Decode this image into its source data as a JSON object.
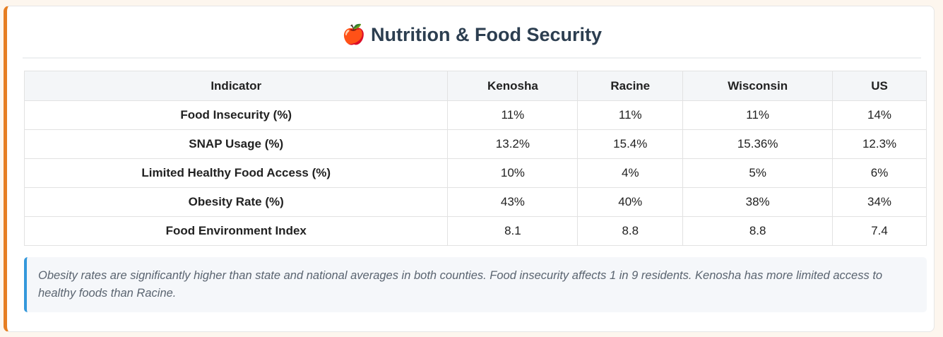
{
  "title": "🍎 Nutrition & Food Security",
  "table": {
    "columns": [
      "Indicator",
      "Kenosha",
      "Racine",
      "Wisconsin",
      "US"
    ],
    "rows": [
      [
        "Food Insecurity (%)",
        "11%",
        "11%",
        "11%",
        "14%"
      ],
      [
        "SNAP Usage (%)",
        "13.2%",
        "15.4%",
        "15.36%",
        "12.3%"
      ],
      [
        "Limited Healthy Food Access (%)",
        "10%",
        "4%",
        "5%",
        "6%"
      ],
      [
        "Obesity Rate (%)",
        "43%",
        "40%",
        "38%",
        "34%"
      ],
      [
        "Food Environment Index",
        "8.1",
        "8.8",
        "8.8",
        "7.4"
      ]
    ]
  },
  "note": "Obesity rates are significantly higher than state and national averages in both counties. Food insecurity affects 1 in 9 residents. Kenosha has more limited access to healthy foods than Racine."
}
